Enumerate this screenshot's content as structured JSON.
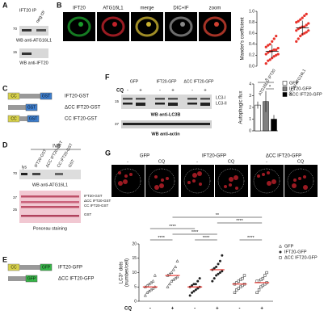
{
  "panel_labels": [
    "A",
    "B",
    "C",
    "D",
    "E",
    "F",
    "G"
  ],
  "a": {
    "header": [
      "IFT20 IP",
      "neg ctr"
    ],
    "markers": [
      "70",
      "15"
    ],
    "blots": [
      "WB anti-ATG16L1",
      "WB anti-IFT20"
    ]
  },
  "b": {
    "images": [
      "IFT20",
      "ATG16L1",
      "merge",
      "DIC+IF",
      "zoom"
    ]
  },
  "c": {
    "constructs": [
      "IFT20-GST",
      "ΔCC IFT20-GST",
      "CC IFT20-GST"
    ],
    "domains": [
      "CC",
      "GST"
    ]
  },
  "d": {
    "title": "IVB",
    "lanes": [
      "lys",
      "IFT20-GST",
      "ΔCC IFT20-GST",
      "CC IFT20-GST",
      "GST"
    ],
    "markers": [
      "70",
      "37",
      "25"
    ],
    "blots": [
      "WB anti-ATG16L1",
      "Ponceau staining"
    ],
    "bands": [
      "IFT20-GST",
      "ΔCC IFT20-GST",
      "CC IFT20-GST",
      "GST"
    ]
  },
  "e": {
    "constructs": [
      "IFT20-GFP",
      "ΔCC IFT20-GFP"
    ],
    "domains": [
      "CC",
      "GFP"
    ]
  },
  "f": {
    "samples": [
      "GFP",
      "IFT20-GFP",
      "ΔCC IFT20-GFP"
    ],
    "treatment": "CQ",
    "conditions": [
      "-",
      "+",
      "-",
      "+",
      "-",
      "+"
    ],
    "markers": [
      "15",
      "37"
    ],
    "bands": [
      "LC3-I",
      "LC3-II"
    ],
    "blots": [
      "WB anti-LC3B",
      "WB anti-actin"
    ]
  },
  "g": {
    "samples": [
      "GFP",
      "IFT20-GFP",
      "ΔCC IFT20-GFP"
    ],
    "conditions": [
      "-",
      "CQ",
      "-",
      "CQ",
      "-",
      "CQ"
    ]
  },
  "chart_data": [
    {
      "type": "scatter",
      "y_label": "Mander's coefficient",
      "categories": [
        "ATG16L1/ IFT20",
        "IFT20/ ATG16L1"
      ],
      "color": "#e8322b",
      "groups": [
        {
          "values": [
            0.05,
            0.1,
            0.12,
            0.15,
            0.18,
            0.2,
            0.22,
            0.22,
            0.25,
            0.27,
            0.28,
            0.3,
            0.3,
            0.33,
            0.35,
            0.38,
            0.4,
            0.45,
            0.5,
            0.55
          ],
          "mean": 0.27,
          "sd": 0.12
        },
        {
          "values": [
            0.45,
            0.5,
            0.55,
            0.58,
            0.6,
            0.62,
            0.65,
            0.65,
            0.68,
            0.7,
            0.72,
            0.72,
            0.75,
            0.78,
            0.8,
            0.82,
            0.85,
            0.88,
            0.92,
            0.95
          ],
          "mean": 0.7,
          "sd": 0.13
        }
      ],
      "ylim": [
        0,
        1
      ],
      "yticks": [
        {
          "value": 0,
          "label": "0.0"
        },
        {
          "value": 0.2,
          "label": "0.2"
        },
        {
          "value": 0.4,
          "label": "0.4"
        },
        {
          "value": 0.6,
          "label": "0.6"
        },
        {
          "value": 0.8,
          "label": "0.8"
        },
        {
          "value": 1,
          "label": "1.0"
        }
      ]
    },
    {
      "type": "bar",
      "y_label": "Autophagic flux",
      "categories": [
        "GFP",
        "IFT20-GFP",
        "ΔCC IFT20-GFP"
      ],
      "values": [
        2.2,
        2.5,
        1.0
      ],
      "errors": [
        0.3,
        0.9,
        0.35
      ],
      "colors": [
        "#ffffff",
        "#808080",
        "#000000"
      ],
      "ylim": [
        0,
        4
      ],
      "yticks": [
        0,
        1,
        2,
        3,
        4
      ],
      "annotations": [
        "*",
        "*"
      ],
      "legend": "upper right"
    },
    {
      "type": "dotplot",
      "y_label": [
        "LC3⁺ dots",
        "(number/cell)"
      ],
      "x_row_label": "CQ",
      "x_labels": [
        "-",
        "+",
        "-",
        "+",
        "-",
        "+"
      ],
      "mean_color": "#e8322b",
      "series": [
        {
          "name": "GFP",
          "marker": "triangle",
          "groups": [
            {
              "values": [
                2,
                3,
                3.5,
                4,
                4.5,
                5,
                5,
                5.5,
                6,
                6.5,
                7,
                9
              ],
              "mean": 5
            },
            {
              "values": [
                5,
                6,
                7,
                7.5,
                8,
                8.5,
                9,
                9.5,
                10,
                11,
                12,
                14
              ],
              "mean": 9
            }
          ]
        },
        {
          "name": "IFT20-GFP",
          "marker": "circle",
          "groups": [
            {
              "values": [
                2,
                3,
                3.5,
                4,
                4.5,
                5,
                5,
                5.5,
                6,
                6,
                7,
                8
              ],
              "mean": 5
            },
            {
              "values": [
                7,
                8,
                9,
                9.5,
                10,
                10.5,
                11,
                11.5,
                12,
                13,
                14,
                16
              ],
              "mean": 11
            }
          ]
        },
        {
          "name": "ΔCC IFT20-GFP",
          "marker": "square",
          "groups": [
            {
              "values": [
                3,
                4,
                4.5,
                5,
                5.5,
                6,
                6,
                6.5,
                7,
                7.5,
                8,
                9
              ],
              "mean": 6
            },
            {
              "values": [
                3,
                4,
                5,
                5.5,
                6,
                6.5,
                7,
                7,
                7.5,
                8,
                9,
                10
              ],
              "mean": 6.5
            }
          ]
        }
      ],
      "ylim": [
        0,
        20
      ],
      "yticks": [
        0,
        5,
        10,
        15,
        20
      ],
      "annotations": [
        "****",
        "****",
        "****",
        "****",
        "****",
        "****",
        "**"
      ]
    }
  ]
}
